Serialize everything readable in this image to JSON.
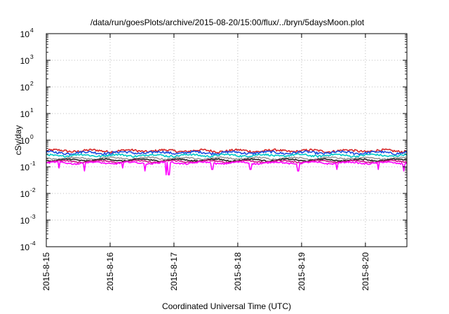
{
  "chart_data": {
    "type": "line",
    "title": "/data/run/goesPlots/archive/2015-08-20/15:00/flux/../bryn/5daysMoon.plot",
    "xlabel": "Coordinated Universal Time (UTC)",
    "ylabel": "cSv/day",
    "yscale": "log",
    "ylim": [
      0.0001,
      10000
    ],
    "y_ticks": [
      {
        "base": "10",
        "exp": "4"
      },
      {
        "base": "10",
        "exp": "3"
      },
      {
        "base": "10",
        "exp": "2"
      },
      {
        "base": "10",
        "exp": "1"
      },
      {
        "base": "10",
        "exp": "0"
      },
      {
        "base": "10",
        "exp": "-1"
      },
      {
        "base": "10",
        "exp": "-2"
      },
      {
        "base": "10",
        "exp": "-3"
      },
      {
        "base": "10",
        "exp": "-4"
      }
    ],
    "x_ticks": [
      "2015-8-15",
      "2015-8-16",
      "2015-8-17",
      "2015-8-18",
      "2015-8-19",
      "2015-8-20"
    ],
    "xlim_days": [
      0,
      5.65
    ],
    "grid": true,
    "series": [
      {
        "color": "#d62728",
        "level": 0.4,
        "jitter": 0.1,
        "dips": []
      },
      {
        "color": "#1f4fe0",
        "level": 0.34,
        "jitter": 0.1,
        "dips": []
      },
      {
        "color": "#00c8c8",
        "level": 0.27,
        "jitter": 0.08,
        "dips": []
      },
      {
        "color": "#9b9b9b",
        "level": 0.21,
        "jitter": 0.06,
        "dips": []
      },
      {
        "color": "#222222",
        "level": 0.18,
        "jitter": 0.05,
        "dips": []
      },
      {
        "color": "#c71585",
        "level": 0.16,
        "jitter": 0.05,
        "dips": []
      },
      {
        "color": "#ff00ff",
        "level": 0.14,
        "jitter": 0.06,
        "dips": [
          [
            0.2,
            0.09
          ],
          [
            0.6,
            0.07
          ],
          [
            1.2,
            0.09
          ],
          [
            1.55,
            0.07
          ],
          [
            1.88,
            0.05
          ],
          [
            1.92,
            0.05
          ],
          [
            2.6,
            0.08
          ],
          [
            3.2,
            0.08
          ],
          [
            3.95,
            0.07
          ],
          [
            4.55,
            0.08
          ],
          [
            5.2,
            0.08
          ],
          [
            5.6,
            0.07
          ]
        ]
      }
    ]
  }
}
